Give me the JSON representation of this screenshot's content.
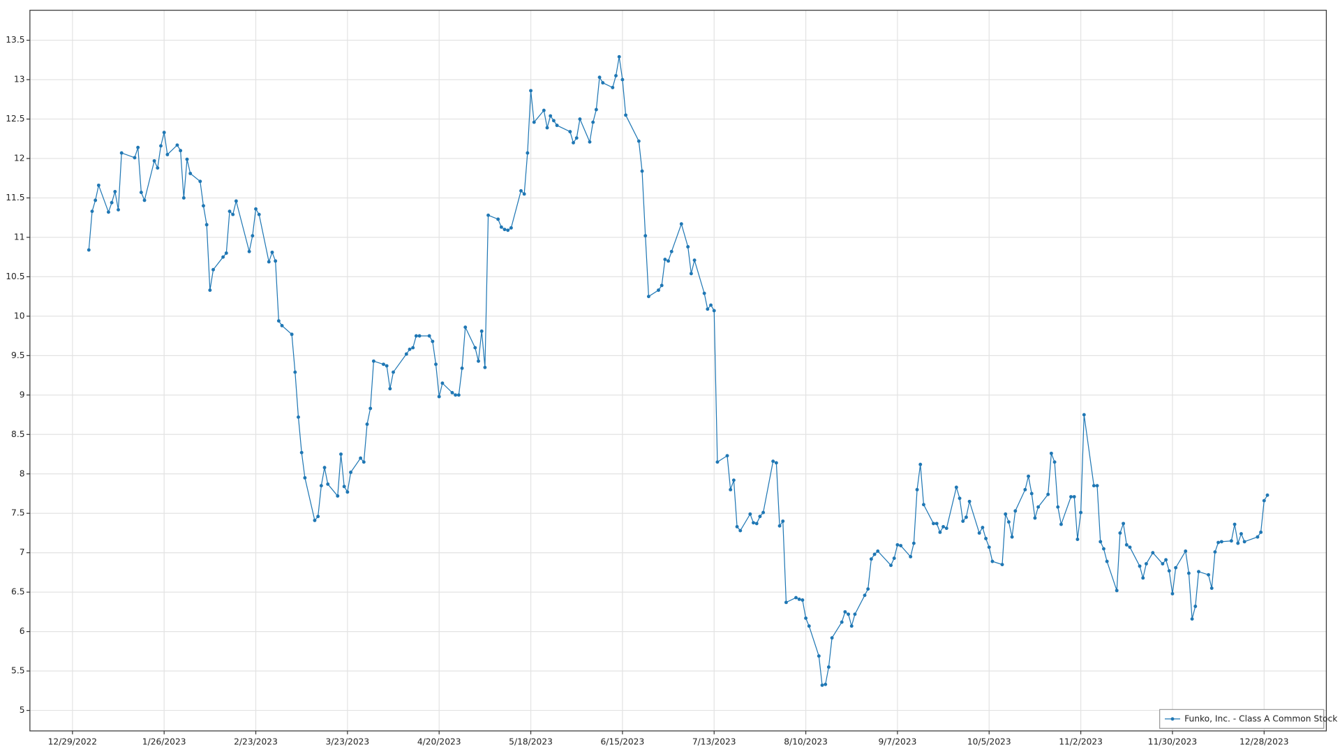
{
  "chart_data": {
    "type": "line",
    "x": [
      "2023-01-03",
      "2023-01-04",
      "2023-01-05",
      "2023-01-06",
      "2023-01-09",
      "2023-01-10",
      "2023-01-11",
      "2023-01-12",
      "2023-01-13",
      "2023-01-17",
      "2023-01-18",
      "2023-01-19",
      "2023-01-20",
      "2023-01-23",
      "2023-01-24",
      "2023-01-25",
      "2023-01-26",
      "2023-01-27",
      "2023-01-30",
      "2023-01-31",
      "2023-02-01",
      "2023-02-02",
      "2023-02-03",
      "2023-02-06",
      "2023-02-07",
      "2023-02-08",
      "2023-02-09",
      "2023-02-10",
      "2023-02-13",
      "2023-02-14",
      "2023-02-15",
      "2023-02-16",
      "2023-02-17",
      "2023-02-21",
      "2023-02-22",
      "2023-02-23",
      "2023-02-24",
      "2023-02-27",
      "2023-02-28",
      "2023-03-01",
      "2023-03-02",
      "2023-03-03",
      "2023-03-06",
      "2023-03-07",
      "2023-03-08",
      "2023-03-09",
      "2023-03-10",
      "2023-03-13",
      "2023-03-14",
      "2023-03-15",
      "2023-03-16",
      "2023-03-17",
      "2023-03-20",
      "2023-03-21",
      "2023-03-22",
      "2023-03-23",
      "2023-03-24",
      "2023-03-27",
      "2023-03-28",
      "2023-03-29",
      "2023-03-30",
      "2023-03-31",
      "2023-04-03",
      "2023-04-04",
      "2023-04-05",
      "2023-04-06",
      "2023-04-10",
      "2023-04-11",
      "2023-04-12",
      "2023-04-13",
      "2023-04-14",
      "2023-04-17",
      "2023-04-18",
      "2023-04-19",
      "2023-04-20",
      "2023-04-21",
      "2023-04-24",
      "2023-04-25",
      "2023-04-26",
      "2023-04-27",
      "2023-04-28",
      "2023-05-01",
      "2023-05-02",
      "2023-05-03",
      "2023-05-04",
      "2023-05-05",
      "2023-05-08",
      "2023-05-09",
      "2023-05-10",
      "2023-05-11",
      "2023-05-12",
      "2023-05-15",
      "2023-05-16",
      "2023-05-17",
      "2023-05-18",
      "2023-05-19",
      "2023-05-22",
      "2023-05-23",
      "2023-05-24",
      "2023-05-25",
      "2023-05-26",
      "2023-05-30",
      "2023-05-31",
      "2023-06-01",
      "2023-06-02",
      "2023-06-05",
      "2023-06-06",
      "2023-06-07",
      "2023-06-08",
      "2023-06-09",
      "2023-06-12",
      "2023-06-13",
      "2023-06-14",
      "2023-06-15",
      "2023-06-16",
      "2023-06-20",
      "2023-06-21",
      "2023-06-22",
      "2023-06-23",
      "2023-06-26",
      "2023-06-27",
      "2023-06-28",
      "2023-06-29",
      "2023-06-30",
      "2023-07-03",
      "2023-07-05",
      "2023-07-06",
      "2023-07-07",
      "2023-07-10",
      "2023-07-11",
      "2023-07-12",
      "2023-07-13",
      "2023-07-14",
      "2023-07-17",
      "2023-07-18",
      "2023-07-19",
      "2023-07-20",
      "2023-07-21",
      "2023-07-24",
      "2023-07-25",
      "2023-07-26",
      "2023-07-27",
      "2023-07-28",
      "2023-07-31",
      "2023-08-01",
      "2023-08-02",
      "2023-08-03",
      "2023-08-04",
      "2023-08-07",
      "2023-08-08",
      "2023-08-09",
      "2023-08-10",
      "2023-08-11",
      "2023-08-14",
      "2023-08-15",
      "2023-08-16",
      "2023-08-17",
      "2023-08-18",
      "2023-08-21",
      "2023-08-22",
      "2023-08-23",
      "2023-08-24",
      "2023-08-25",
      "2023-08-28",
      "2023-08-29",
      "2023-08-30",
      "2023-08-31",
      "2023-09-01",
      "2023-09-05",
      "2023-09-06",
      "2023-09-07",
      "2023-09-08",
      "2023-09-11",
      "2023-09-12",
      "2023-09-13",
      "2023-09-14",
      "2023-09-15",
      "2023-09-18",
      "2023-09-19",
      "2023-09-20",
      "2023-09-21",
      "2023-09-22",
      "2023-09-25",
      "2023-09-26",
      "2023-09-27",
      "2023-09-28",
      "2023-09-29",
      "2023-10-02",
      "2023-10-03",
      "2023-10-04",
      "2023-10-05",
      "2023-10-06",
      "2023-10-09",
      "2023-10-10",
      "2023-10-11",
      "2023-10-12",
      "2023-10-13",
      "2023-10-16",
      "2023-10-17",
      "2023-10-18",
      "2023-10-19",
      "2023-10-20",
      "2023-10-23",
      "2023-10-24",
      "2023-10-25",
      "2023-10-26",
      "2023-10-27",
      "2023-10-30",
      "2023-10-31",
      "2023-11-01",
      "2023-11-02",
      "2023-11-03",
      "2023-11-06",
      "2023-11-07",
      "2023-11-08",
      "2023-11-09",
      "2023-11-10",
      "2023-11-13",
      "2023-11-14",
      "2023-11-15",
      "2023-11-16",
      "2023-11-17",
      "2023-11-20",
      "2023-11-21",
      "2023-11-22",
      "2023-11-24",
      "2023-11-27",
      "2023-11-28",
      "2023-11-29",
      "2023-11-30",
      "2023-12-01",
      "2023-12-04",
      "2023-12-05",
      "2023-12-06",
      "2023-12-07",
      "2023-12-08",
      "2023-12-11",
      "2023-12-12",
      "2023-12-13",
      "2023-12-14",
      "2023-12-15",
      "2023-12-18",
      "2023-12-19",
      "2023-12-20",
      "2023-12-21",
      "2023-12-22",
      "2023-12-26",
      "2023-12-27",
      "2023-12-28",
      "2023-12-29"
    ],
    "series": [
      {
        "name": "Funko, Inc. - Class A Common Stock",
        "color": "#1f77b4",
        "values": [
          10.84,
          11.33,
          11.47,
          11.66,
          11.32,
          11.44,
          11.58,
          11.35,
          12.07,
          12.01,
          12.14,
          11.57,
          11.47,
          11.97,
          11.88,
          12.16,
          12.33,
          12.05,
          12.17,
          12.1,
          11.5,
          11.99,
          11.81,
          11.71,
          11.4,
          11.16,
          10.33,
          10.59,
          10.75,
          10.8,
          11.33,
          11.29,
          11.46,
          10.82,
          11.02,
          11.36,
          11.29,
          10.69,
          10.81,
          10.7,
          9.94,
          9.88,
          9.77,
          9.29,
          8.72,
          8.27,
          7.95,
          7.41,
          7.46,
          7.85,
          8.08,
          7.87,
          7.72,
          8.25,
          7.84,
          7.77,
          8.02,
          8.2,
          8.15,
          8.63,
          8.83,
          9.43,
          9.39,
          9.37,
          9.08,
          9.29,
          9.52,
          9.58,
          9.6,
          9.75,
          9.75,
          9.75,
          9.68,
          9.39,
          8.98,
          9.15,
          9.03,
          9.0,
          9.0,
          9.34,
          9.86,
          9.6,
          9.43,
          9.81,
          9.35,
          11.28,
          11.23,
          11.13,
          11.1,
          11.09,
          11.12,
          11.59,
          11.55,
          12.07,
          12.86,
          12.46,
          12.61,
          12.39,
          12.54,
          12.48,
          12.42,
          12.34,
          12.2,
          12.26,
          12.5,
          12.21,
          12.46,
          12.62,
          13.03,
          12.96,
          12.9,
          13.05,
          13.29,
          13.0,
          12.55,
          12.22,
          11.84,
          11.02,
          10.25,
          10.33,
          10.39,
          10.72,
          10.7,
          10.82,
          11.17,
          10.88,
          10.54,
          10.71,
          10.29,
          10.09,
          10.14,
          10.07,
          8.15,
          8.23,
          7.8,
          7.92,
          7.33,
          7.28,
          7.49,
          7.38,
          7.37,
          7.46,
          7.51,
          8.16,
          8.14,
          7.34,
          7.4,
          6.37,
          6.43,
          6.41,
          6.4,
          6.17,
          6.07,
          5.69,
          5.32,
          5.33,
          5.55,
          5.92,
          6.12,
          6.25,
          6.22,
          6.07,
          6.22,
          6.46,
          6.54,
          6.92,
          6.98,
          7.02,
          6.84,
          6.93,
          7.1,
          7.09,
          6.95,
          7.12,
          7.8,
          8.12,
          7.61,
          7.37,
          7.37,
          7.26,
          7.33,
          7.31,
          7.83,
          7.69,
          7.4,
          7.45,
          7.65,
          7.25,
          7.32,
          7.18,
          7.07,
          6.89,
          6.85,
          7.49,
          7.39,
          7.2,
          7.53,
          7.8,
          7.97,
          7.75,
          7.44,
          7.58,
          7.74,
          8.26,
          8.15,
          7.58,
          7.36,
          7.71,
          7.71,
          7.17,
          7.51,
          8.75,
          7.85,
          7.85,
          7.14,
          7.05,
          6.89,
          6.52,
          7.25,
          7.37,
          7.1,
          7.07,
          6.83,
          6.68,
          6.86,
          7.0,
          6.86,
          6.91,
          6.77,
          6.48,
          6.81,
          7.02,
          6.74,
          6.16,
          6.32,
          6.76,
          6.72,
          6.55,
          7.01,
          7.13,
          7.14,
          7.15,
          7.36,
          7.12,
          7.24,
          7.14,
          7.2,
          7.26,
          7.66,
          7.73
        ]
      }
    ],
    "xlim": [
      "2022-12-16",
      "2024-01-16"
    ],
    "xticks": [
      {
        "value": "2022-12-29",
        "label": "12/29/2022"
      },
      {
        "value": "2023-01-26",
        "label": "1/26/2023"
      },
      {
        "value": "2023-02-23",
        "label": "2/23/2023"
      },
      {
        "value": "2023-03-23",
        "label": "3/23/2023"
      },
      {
        "value": "2023-04-20",
        "label": "4/20/2023"
      },
      {
        "value": "2023-05-18",
        "label": "5/18/2023"
      },
      {
        "value": "2023-06-15",
        "label": "6/15/2023"
      },
      {
        "value": "2023-07-13",
        "label": "7/13/2023"
      },
      {
        "value": "2023-08-10",
        "label": "8/10/2023"
      },
      {
        "value": "2023-09-07",
        "label": "9/7/2023"
      },
      {
        "value": "2023-10-05",
        "label": "10/5/2023"
      },
      {
        "value": "2023-11-02",
        "label": "11/2/2023"
      },
      {
        "value": "2023-11-30",
        "label": "11/30/2023"
      },
      {
        "value": "2023-12-28",
        "label": "12/28/2023"
      }
    ],
    "ylim": [
      4.74,
      13.88
    ],
    "yticks": [
      5,
      5.5,
      6,
      6.5,
      7,
      7.5,
      8,
      8.5,
      9,
      9.5,
      10,
      10.5,
      11,
      11.5,
      12,
      12.5,
      13,
      13.5
    ],
    "grid": true,
    "legend": "lower right"
  }
}
